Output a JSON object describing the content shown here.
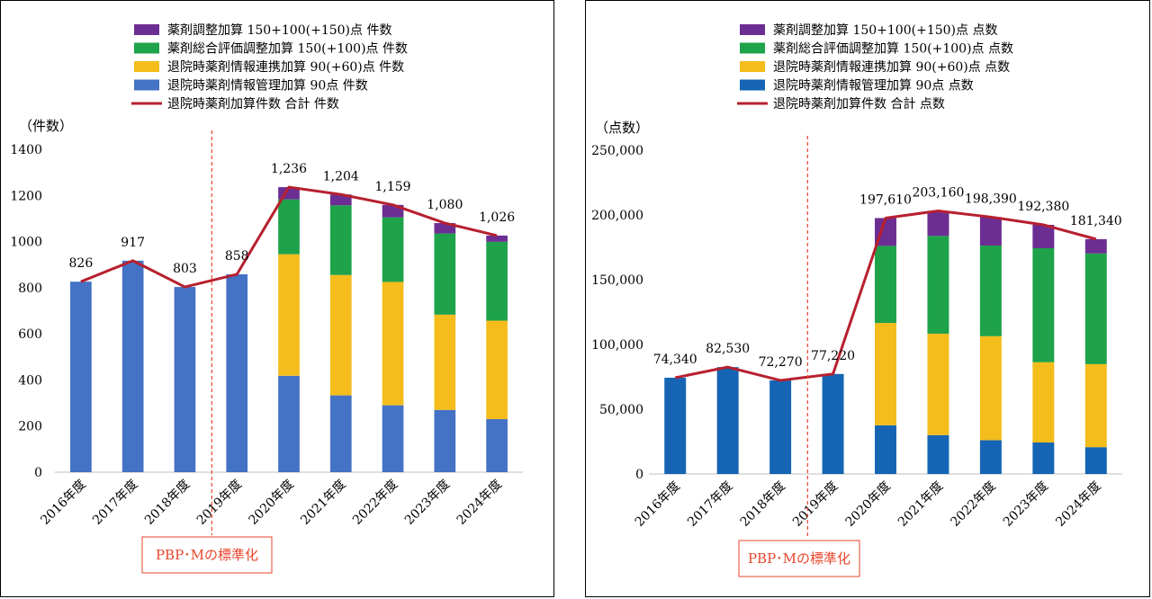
{
  "chart_data": [
    {
      "type": "bar",
      "stacked": true,
      "title": "",
      "ylabel": "（件数）",
      "ylim": [
        0,
        1400
      ],
      "yticks": [
        0,
        200,
        400,
        600,
        800,
        1000,
        1200,
        1400
      ],
      "ytick_format": "plain",
      "categories": [
        "2016年度",
        "2017年度",
        "2018年度",
        "2019年度",
        "2020年度",
        "2021年度",
        "2022年度",
        "2023年度",
        "2024年度"
      ],
      "series": [
        {
          "name": "退院時薬剤情報管理加算 90点 件数",
          "color": "#4472c4",
          "values": [
            826,
            917,
            803,
            858,
            418,
            333,
            290,
            270,
            230
          ]
        },
        {
          "name": "退院時薬剤情報連携加算 90(+60)点 件数",
          "color": "#f4bd1c",
          "values": [
            0,
            0,
            0,
            0,
            527,
            522,
            535,
            413,
            427
          ]
        },
        {
          "name": "薬剤総合評価調整加算 150(+100)点 件数",
          "color": "#1ea34a",
          "values": [
            0,
            0,
            0,
            0,
            238,
            302,
            280,
            352,
            342
          ]
        },
        {
          "name": "薬剤調整加算 150+100(+150)点 件数",
          "color": "#6c2e93",
          "values": [
            0,
            0,
            0,
            0,
            53,
            47,
            54,
            45,
            27
          ]
        }
      ],
      "line": {
        "name": "退院時薬剤加算件数 合計 件数",
        "color": "#b7202e",
        "values": [
          826,
          917,
          803,
          858,
          1236,
          1204,
          1159,
          1080,
          1026
        ],
        "labels": [
          "826",
          "917",
          "803",
          "858",
          "1,236",
          "1,204",
          "1,159",
          "1,080",
          "1,026"
        ]
      },
      "legend_order": [
        "薬剤調整加算 150+100(+150)点 件数",
        "薬剤総合評価調整加算 150(+100)点 件数",
        "退院時薬剤情報連携加算 90(+60)点 件数",
        "退院時薬剤情報管理加算 90点 件数",
        "退院時薬剤加算件数 合計 件数"
      ],
      "legend_position": "top-center",
      "annotation": {
        "text": "PBP･Mの標準化",
        "between": [
          "2018年度",
          "2019年度"
        ],
        "color": "#e8452c"
      },
      "grid": false
    },
    {
      "type": "bar",
      "stacked": true,
      "title": "",
      "ylabel": "（点数）",
      "ylim": [
        0,
        250000
      ],
      "yticks": [
        0,
        50000,
        100000,
        150000,
        200000,
        250000
      ],
      "ytick_format": "comma",
      "categories": [
        "2016年度",
        "2017年度",
        "2018年度",
        "2019年度",
        "2020年度",
        "2021年度",
        "2022年度",
        "2023年度",
        "2024年度"
      ],
      "series": [
        {
          "name": "退院時薬剤情報管理加算 90点 点数",
          "color": "#1565b4",
          "values": [
            74340,
            82530,
            72270,
            77220,
            37600,
            30000,
            26100,
            24300,
            20700
          ]
        },
        {
          "name": "退院時薬剤情報連携加算 90(+60)点 点数",
          "color": "#f4bd1c",
          "values": [
            0,
            0,
            0,
            0,
            79000,
            78300,
            80300,
            62000,
            64100
          ]
        },
        {
          "name": "薬剤総合評価調整加算 150(+100)点 点数",
          "color": "#1ea34a",
          "values": [
            0,
            0,
            0,
            0,
            59500,
            75500,
            70000,
            88000,
            85500
          ]
        },
        {
          "name": "薬剤調整加算 150+100(+150)点 点数",
          "color": "#6c2e93",
          "values": [
            0,
            0,
            0,
            0,
            21510,
            19360,
            21990,
            18080,
            11040
          ]
        }
      ],
      "line": {
        "name": "退院時薬剤加算件数 合計 点数",
        "color": "#b7202e",
        "values": [
          74340,
          82530,
          72270,
          77220,
          197610,
          203160,
          198390,
          192380,
          181340
        ],
        "labels": [
          "74,340",
          "82,530",
          "72,270",
          "77,220",
          "197,610",
          "203,160",
          "198,390",
          "192,380",
          "181,340"
        ]
      },
      "legend_order": [
        "薬剤調整加算 150+100(+150)点 点数",
        "薬剤総合評価調整加算 150(+100)点 点数",
        "退院時薬剤情報連携加算 90(+60)点 点数",
        "退院時薬剤情報管理加算 90点 点数",
        "退院時薬剤加算件数 合計 点数"
      ],
      "legend_position": "top-center",
      "annotation": {
        "text": "PBP･Mの標準化",
        "between": [
          "2018年度",
          "2019年度"
        ],
        "color": "#e8452c"
      },
      "grid": false
    }
  ]
}
